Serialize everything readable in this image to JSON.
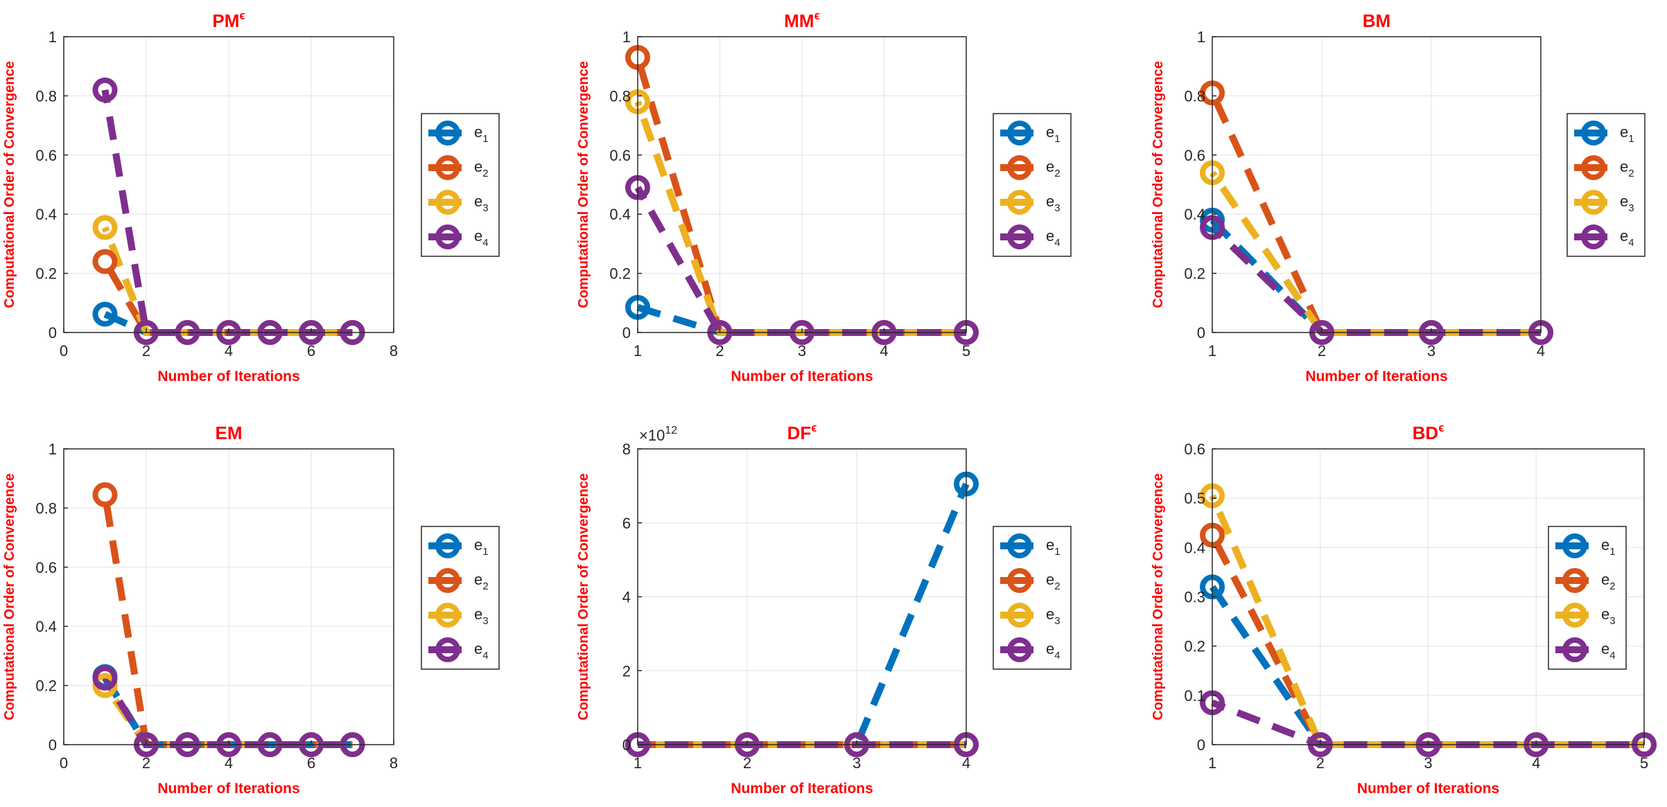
{
  "series_colors": [
    "#0072BD",
    "#D95319",
    "#EDB120",
    "#7E2F8E"
  ],
  "chart_data": [
    {
      "type": "line",
      "title_main": "PM",
      "title_sup": "ϵ",
      "xlabel": "Number of Iterations",
      "ylabel": "Computational Order of Convergence",
      "xlim": [
        0,
        8
      ],
      "ylim": [
        0,
        1
      ],
      "xticks": [
        0,
        2,
        4,
        6,
        8
      ],
      "xtick_labels": [
        "0",
        "2",
        "4",
        "6",
        "8"
      ],
      "yticks": [
        0,
        0.2,
        0.4,
        0.6,
        0.8,
        1
      ],
      "ytick_labels": [
        "0",
        "0.2",
        "0.4",
        "0.6",
        "0.8",
        "1"
      ],
      "exponent": "",
      "grid": true,
      "legend_position": "outside-right",
      "x": [
        1,
        2,
        3,
        4,
        5,
        6,
        7
      ],
      "series": [
        {
          "name": "e1",
          "name_main": "e",
          "name_sub": "1",
          "values": [
            0.062,
            0,
            0,
            0,
            0,
            0,
            0
          ]
        },
        {
          "name": "e2",
          "name_main": "e",
          "name_sub": "2",
          "values": [
            0.24,
            0,
            0,
            0,
            0,
            0,
            0
          ]
        },
        {
          "name": "e3",
          "name_main": "e",
          "name_sub": "3",
          "values": [
            0.355,
            0,
            0,
            0,
            0,
            0,
            0
          ]
        },
        {
          "name": "e4",
          "name_main": "e",
          "name_sub": "4",
          "values": [
            0.82,
            0,
            0,
            0,
            0,
            0,
            0
          ]
        }
      ]
    },
    {
      "type": "line",
      "title_main": "MM",
      "title_sup": "ϵ",
      "xlabel": "Number of Iterations",
      "ylabel": "Computational Order of Convergence",
      "xlim": [
        1,
        5
      ],
      "ylim": [
        0,
        1
      ],
      "xticks": [
        1,
        2,
        3,
        4,
        5
      ],
      "xtick_labels": [
        "1",
        "2",
        "3",
        "4",
        "5"
      ],
      "yticks": [
        0,
        0.2,
        0.4,
        0.6,
        0.8,
        1
      ],
      "ytick_labels": [
        "0",
        "0.2",
        "0.4",
        "0.6",
        "0.8",
        "1"
      ],
      "exponent": "",
      "grid": true,
      "legend_position": "outside-right",
      "x": [
        1,
        2,
        3,
        4,
        5
      ],
      "series": [
        {
          "name": "e1",
          "name_main": "e",
          "name_sub": "1",
          "values": [
            0.085,
            0,
            0,
            0,
            0
          ]
        },
        {
          "name": "e2",
          "name_main": "e",
          "name_sub": "2",
          "values": [
            0.93,
            0,
            0,
            0,
            0
          ]
        },
        {
          "name": "e3",
          "name_main": "e",
          "name_sub": "3",
          "values": [
            0.78,
            0,
            0,
            0,
            0
          ]
        },
        {
          "name": "e4",
          "name_main": "e",
          "name_sub": "4",
          "values": [
            0.49,
            0,
            0,
            0,
            0
          ]
        }
      ]
    },
    {
      "type": "line",
      "title_main": "BM",
      "title_sup": "",
      "xlabel": "Number of Iterations",
      "ylabel": "Computational Order of Convergence",
      "xlim": [
        1,
        4
      ],
      "ylim": [
        0,
        1
      ],
      "xticks": [
        1,
        2,
        3,
        4
      ],
      "xtick_labels": [
        "1",
        "2",
        "3",
        "4"
      ],
      "yticks": [
        0,
        0.2,
        0.4,
        0.6,
        0.8,
        1
      ],
      "ytick_labels": [
        "0",
        "0.2",
        "0.4",
        "0.6",
        "0.8",
        "1"
      ],
      "exponent": "",
      "grid": true,
      "legend_position": "outside-right",
      "x": [
        1,
        2,
        3,
        4
      ],
      "series": [
        {
          "name": "e1",
          "name_main": "e",
          "name_sub": "1",
          "values": [
            0.38,
            0,
            0,
            0
          ]
        },
        {
          "name": "e2",
          "name_main": "e",
          "name_sub": "2",
          "values": [
            0.81,
            0,
            0,
            0
          ]
        },
        {
          "name": "e3",
          "name_main": "e",
          "name_sub": "3",
          "values": [
            0.54,
            0,
            0,
            0
          ]
        },
        {
          "name": "e4",
          "name_main": "e",
          "name_sub": "4",
          "values": [
            0.355,
            0,
            0,
            0
          ]
        }
      ]
    },
    {
      "type": "line",
      "title_main": "EM",
      "title_sup": "",
      "xlabel": "Number of Iterations",
      "ylabel": "Computational Order of Convergence",
      "xlim": [
        0,
        8
      ],
      "ylim": [
        0,
        1
      ],
      "xticks": [
        0,
        2,
        4,
        6,
        8
      ],
      "xtick_labels": [
        "0",
        "2",
        "4",
        "6",
        "8"
      ],
      "yticks": [
        0,
        0.2,
        0.4,
        0.6,
        0.8,
        1
      ],
      "ytick_labels": [
        "0",
        "0.2",
        "0.4",
        "0.6",
        "0.8",
        "1"
      ],
      "exponent": "",
      "grid": true,
      "legend_position": "outside-right",
      "x": [
        1,
        2,
        3,
        4,
        5,
        6,
        7
      ],
      "series": [
        {
          "name": "e1",
          "name_main": "e",
          "name_sub": "1",
          "values": [
            0.23,
            0,
            0,
            0,
            0,
            0,
            0
          ]
        },
        {
          "name": "e2",
          "name_main": "e",
          "name_sub": "2",
          "values": [
            0.845,
            0,
            0,
            0,
            0,
            0,
            0
          ]
        },
        {
          "name": "e3",
          "name_main": "e",
          "name_sub": "3",
          "values": [
            0.2,
            0,
            0,
            0,
            0,
            0,
            0
          ]
        },
        {
          "name": "e4",
          "name_main": "e",
          "name_sub": "4",
          "values": [
            0.225,
            0,
            0,
            0,
            0,
            0,
            0
          ]
        }
      ]
    },
    {
      "type": "line",
      "title_main": "DF",
      "title_sup": "ϵ",
      "xlabel": "Number of Iterations",
      "ylabel": "Computational Order of Convergence",
      "xlim": [
        1,
        4
      ],
      "ylim": [
        0,
        8000000000000.0
      ],
      "xticks": [
        1,
        2,
        3,
        4
      ],
      "xtick_labels": [
        "1",
        "2",
        "3",
        "4"
      ],
      "yticks": [
        0,
        2000000000000.0,
        4000000000000.0,
        6000000000000.0,
        8000000000000.0
      ],
      "ytick_labels": [
        "0",
        "2",
        "4",
        "6",
        "8"
      ],
      "exponent": "12",
      "grid": true,
      "legend_position": "outside-right",
      "x": [
        1,
        2,
        3,
        4
      ],
      "series": [
        {
          "name": "e1",
          "name_main": "e",
          "name_sub": "1",
          "values": [
            0,
            0,
            0,
            7050000000000.0
          ]
        },
        {
          "name": "e2",
          "name_main": "e",
          "name_sub": "2",
          "values": [
            0,
            0,
            0,
            0
          ]
        },
        {
          "name": "e3",
          "name_main": "e",
          "name_sub": "3",
          "values": [
            0,
            0,
            0,
            0
          ]
        },
        {
          "name": "e4",
          "name_main": "e",
          "name_sub": "4",
          "values": [
            0,
            0,
            0,
            0
          ]
        }
      ]
    },
    {
      "type": "line",
      "title_main": "BD",
      "title_sup": "ϵ",
      "xlabel": "Number of Iterations",
      "ylabel": "Computational Order of Convergence",
      "xlim": [
        1,
        5
      ],
      "ylim": [
        0,
        0.6
      ],
      "xticks": [
        1,
        2,
        3,
        4,
        5
      ],
      "xtick_labels": [
        "1",
        "2",
        "3",
        "4",
        "5"
      ],
      "yticks": [
        0,
        0.1,
        0.2,
        0.3,
        0.4,
        0.5,
        0.6
      ],
      "ytick_labels": [
        "0",
        "0.1",
        "0.2",
        "0.3",
        "0.4",
        "0.5",
        "0.6"
      ],
      "exponent": "",
      "grid": true,
      "legend_position": "outside-right",
      "x": [
        1,
        2,
        3,
        4,
        5
      ],
      "series": [
        {
          "name": "e1",
          "name_main": "e",
          "name_sub": "1",
          "values": [
            0.32,
            0,
            0,
            0,
            0
          ]
        },
        {
          "name": "e2",
          "name_main": "e",
          "name_sub": "2",
          "values": [
            0.425,
            0,
            0,
            0,
            0
          ]
        },
        {
          "name": "e3",
          "name_main": "e",
          "name_sub": "3",
          "values": [
            0.505,
            0,
            0,
            0,
            0
          ]
        },
        {
          "name": "e4",
          "name_main": "e",
          "name_sub": "4",
          "values": [
            0.085,
            0,
            0,
            0,
            0
          ]
        }
      ]
    }
  ]
}
